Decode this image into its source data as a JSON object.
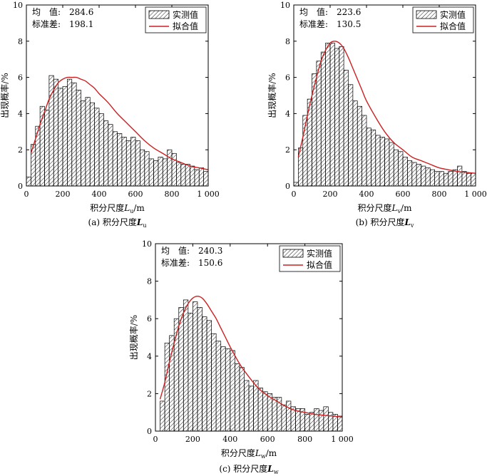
{
  "legend": {
    "measured": "实测值",
    "fitted": "拟合值"
  },
  "stats_labels": {
    "mean": "均　值:",
    "std": "标准差:"
  },
  "colors": {
    "fit_line": "#cc2020",
    "bar_stroke": "#000000",
    "hatch": "#000000"
  },
  "chart_data": [
    {
      "type": "bar",
      "panel_id": "a",
      "caption_prefix": "(a) 积分尺度",
      "caption_var": "L",
      "caption_sub": "u",
      "xlabel_prefix": "积分尺度",
      "xlabel_var": "L",
      "xlabel_sub": "u",
      "xlabel_suffix": "/m",
      "ylabel": "出现概率/%",
      "xlim": [
        0,
        1000
      ],
      "ylim": [
        0,
        10
      ],
      "x_ticks": [
        "0",
        "200",
        "400",
        "600",
        "800",
        "1 000"
      ],
      "y_ticks": [
        "0",
        "2",
        "4",
        "6",
        "8",
        "10"
      ],
      "mean": "284.6",
      "std": "198.1",
      "bin_width": 25,
      "bin_starts": [
        0,
        25,
        50,
        75,
        100,
        125,
        150,
        175,
        200,
        225,
        250,
        275,
        300,
        325,
        350,
        375,
        400,
        425,
        450,
        475,
        500,
        525,
        550,
        575,
        600,
        625,
        650,
        675,
        700,
        725,
        750,
        775,
        800,
        825,
        850,
        875,
        900,
        925,
        950,
        975
      ],
      "values": [
        0.5,
        2.3,
        3.3,
        4.4,
        4.2,
        6.1,
        5.9,
        5.4,
        5.5,
        5.9,
        5.7,
        5.3,
        4.7,
        4.9,
        4.6,
        4.3,
        4.0,
        3.6,
        3.4,
        3.0,
        2.9,
        2.7,
        2.5,
        2.7,
        2.5,
        2.0,
        1.9,
        1.5,
        1.4,
        1.6,
        1.5,
        2.0,
        1.8,
        1.3,
        1.2,
        1.2,
        1.1,
        0.9,
        1.0,
        0.8
      ],
      "fit_curve": {
        "x": [
          25,
          50,
          75,
          100,
          125,
          150,
          175,
          200,
          225,
          250,
          275,
          300,
          325,
          350,
          375,
          400,
          450,
          500,
          550,
          600,
          650,
          700,
          750,
          800,
          850,
          900,
          950,
          1000
        ],
        "y": [
          1.8,
          2.6,
          3.4,
          4.1,
          4.8,
          5.3,
          5.7,
          5.9,
          6.0,
          6.0,
          6.0,
          5.9,
          5.8,
          5.6,
          5.4,
          5.1,
          4.6,
          4.0,
          3.5,
          3.0,
          2.5,
          2.1,
          1.8,
          1.5,
          1.3,
          1.1,
          1.0,
          0.9
        ]
      }
    },
    {
      "type": "bar",
      "panel_id": "b",
      "caption_prefix": "(b) 积分尺度",
      "caption_var": "L",
      "caption_sub": "v",
      "xlabel_prefix": "积分尺度",
      "xlabel_var": "L",
      "xlabel_sub": "v",
      "xlabel_suffix": "/m",
      "ylabel": "出现概率/%",
      "xlim": [
        0,
        1000
      ],
      "ylim": [
        0,
        10
      ],
      "x_ticks": [
        "0",
        "200",
        "400",
        "600",
        "800",
        "1 000"
      ],
      "y_ticks": [
        "0",
        "2",
        "4",
        "6",
        "8",
        "10"
      ],
      "mean": "223.6",
      "std": "130.5",
      "bin_width": 25,
      "bin_starts": [
        0,
        25,
        50,
        75,
        100,
        125,
        150,
        175,
        200,
        225,
        250,
        275,
        300,
        325,
        350,
        375,
        400,
        425,
        450,
        475,
        500,
        525,
        550,
        575,
        600,
        625,
        650,
        675,
        700,
        725,
        750,
        775,
        800,
        825,
        850,
        875,
        900,
        925,
        950,
        975
      ],
      "values": [
        0.2,
        2.1,
        3.9,
        4.8,
        6.2,
        6.9,
        7.4,
        7.9,
        7.9,
        7.6,
        7.7,
        6.4,
        5.6,
        4.7,
        4.4,
        3.9,
        3.2,
        3.1,
        2.8,
        2.7,
        2.6,
        2.4,
        2.0,
        1.9,
        1.6,
        1.4,
        1.3,
        1.2,
        1.1,
        1.0,
        0.9,
        0.8,
        0.8,
        0.7,
        0.8,
        0.9,
        1.1,
        0.8,
        0.7,
        0.7
      ],
      "fit_curve": {
        "x": [
          25,
          50,
          75,
          100,
          125,
          150,
          175,
          200,
          225,
          250,
          275,
          300,
          325,
          350,
          375,
          400,
          450,
          500,
          550,
          600,
          650,
          700,
          750,
          800,
          850,
          900,
          950,
          1000
        ],
        "y": [
          1.6,
          2.7,
          3.9,
          5.0,
          6.0,
          6.9,
          7.5,
          7.9,
          8.0,
          7.9,
          7.6,
          7.1,
          6.5,
          5.9,
          5.3,
          4.7,
          3.8,
          3.0,
          2.4,
          2.0,
          1.6,
          1.4,
          1.2,
          1.0,
          0.9,
          0.8,
          0.75,
          0.7
        ]
      }
    },
    {
      "type": "bar",
      "panel_id": "c",
      "caption_prefix": "(c) 积分尺度",
      "caption_var": "L",
      "caption_sub": "w",
      "xlabel_prefix": "积分尺度",
      "xlabel_var": "L",
      "xlabel_sub": "w",
      "xlabel_suffix": "/m",
      "ylabel": "出现概率/%",
      "xlim": [
        0,
        1000
      ],
      "ylim": [
        0,
        10
      ],
      "x_ticks": [
        "0",
        "200",
        "400",
        "600",
        "800",
        "1 000"
      ],
      "y_ticks": [
        "0",
        "2",
        "4",
        "6",
        "8",
        "10"
      ],
      "mean": "240.3",
      "std": "150.6",
      "bin_width": 25,
      "bin_starts": [
        25,
        50,
        75,
        100,
        125,
        150,
        175,
        200,
        225,
        250,
        275,
        300,
        325,
        350,
        375,
        400,
        425,
        450,
        475,
        500,
        525,
        550,
        575,
        600,
        625,
        650,
        675,
        700,
        725,
        750,
        775,
        800,
        825,
        850,
        875,
        900,
        925,
        950,
        975
      ],
      "values": [
        1.6,
        4.7,
        5.1,
        6.0,
        6.6,
        7.0,
        6.3,
        6.9,
        6.6,
        6.1,
        5.9,
        5.2,
        4.8,
        4.5,
        4.4,
        4.3,
        3.6,
        3.4,
        2.7,
        2.4,
        2.7,
        2.3,
        2.1,
        2.0,
        1.8,
        1.8,
        1.4,
        1.6,
        1.3,
        1.2,
        1.2,
        0.9,
        1.0,
        1.2,
        1.1,
        1.3,
        1.0,
        0.9,
        0.8
      ],
      "fit_curve": {
        "x": [
          25,
          50,
          75,
          100,
          125,
          150,
          175,
          200,
          225,
          250,
          275,
          300,
          325,
          350,
          375,
          400,
          450,
          500,
          550,
          600,
          650,
          700,
          750,
          800,
          850,
          900,
          950,
          1000
        ],
        "y": [
          1.7,
          2.6,
          3.7,
          4.7,
          5.6,
          6.3,
          6.8,
          7.1,
          7.2,
          7.1,
          6.8,
          6.4,
          6.0,
          5.5,
          5.0,
          4.5,
          3.6,
          2.9,
          2.3,
          1.9,
          1.6,
          1.3,
          1.1,
          1.0,
          0.9,
          0.85,
          0.8,
          0.75
        ]
      }
    }
  ]
}
